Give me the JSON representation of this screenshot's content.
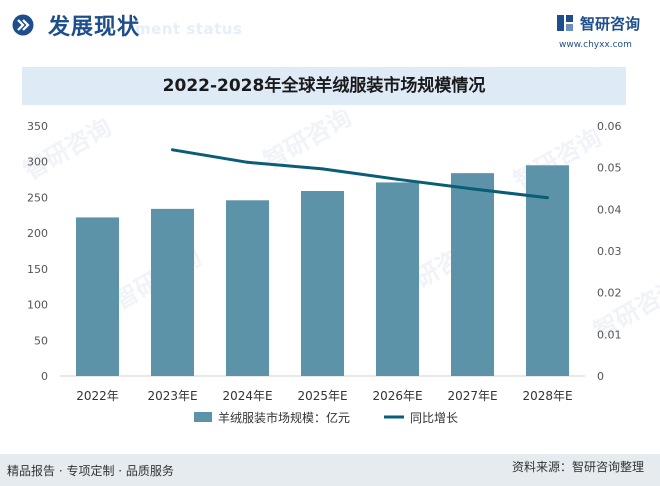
{
  "header": {
    "title": "发展现状",
    "subtitle": "ment status",
    "logo_name": "智研咨询",
    "logo_url": "www.chyxx.com"
  },
  "chart_data": {
    "type": "bar",
    "title": "2022-2028年全球羊绒服装市场规模情况",
    "categories": [
      "2022年",
      "2023年E",
      "2024年E",
      "2025年E",
      "2026年E",
      "2027年E",
      "2028年E"
    ],
    "series": [
      {
        "name": "羊绒服装市场规模：亿元",
        "type": "bar",
        "axis": "left",
        "values": [
          222,
          234,
          246,
          259,
          271,
          284,
          295
        ]
      },
      {
        "name": "同比增长",
        "type": "line",
        "axis": "right",
        "values": [
          null,
          0.0543,
          0.0513,
          0.0497,
          0.0472,
          0.0449,
          0.0428
        ]
      }
    ],
    "y_left": {
      "min": 0,
      "max": 350,
      "ticks": [
        "0",
        "50",
        "100",
        "150",
        "200",
        "250",
        "300",
        "350"
      ]
    },
    "y_right": {
      "min": 0,
      "max": 0.06,
      "ticks": [
        "0",
        "0.01",
        "0.02",
        "0.03",
        "0.04",
        "0.05",
        "0.06"
      ]
    },
    "grid": false,
    "legend": "bottom",
    "colors": {
      "bar": "#5d93a9",
      "line": "#0b5d75"
    }
  },
  "footer": {
    "left": "精品报告 · 专项定制 · 品质服务",
    "right": "资料来源：智研咨询整理"
  },
  "watermark": "智研咨询"
}
